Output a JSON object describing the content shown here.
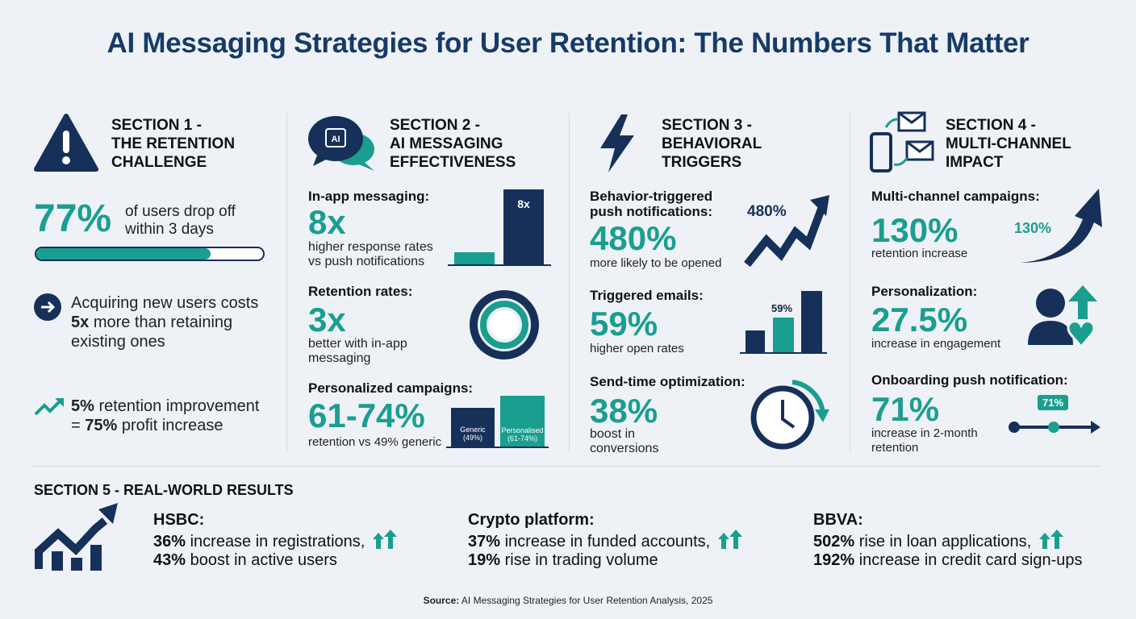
{
  "title": "AI Messaging Strategies for User Retention: The Numbers That Matter",
  "colors": {
    "navy": "#16305a",
    "teal": "#1a9e8f",
    "background": "#eef2f7"
  },
  "s1": {
    "icon": "warning-icon",
    "heading": [
      "SECTION 1 -",
      "THE RETENTION",
      "CHALLENGE"
    ],
    "stat": "77%",
    "stat_text": [
      "of users drop off",
      "within 3 days"
    ],
    "progress_percent": 77,
    "acq": [
      "Acquiring new users costs",
      "5x",
      "more than retaining",
      "existing ones"
    ],
    "profit": {
      "a": "5%",
      "b": "retention improvement",
      "c": "=",
      "d": "75%",
      "e": "profit increase"
    }
  },
  "s2": {
    "heading": [
      "SECTION 2 -",
      "AI MESSAGING",
      "EFFECTIVENESS"
    ],
    "icon_text": "AI",
    "b1": {
      "label": "In-app messaging:",
      "stat": "8x",
      "text": [
        "higher response rates",
        "vs push notifications"
      ],
      "bar_label": "8x"
    },
    "b2": {
      "label": "Retention rates:",
      "stat": "3x",
      "text": [
        "better with in-app",
        "messaging"
      ]
    },
    "b3": {
      "label": "Personalized campaigns:",
      "stat": "61-74%",
      "text": "retention vs 49% generic",
      "bars": [
        {
          "name": "Generic",
          "value": "(49%)"
        },
        {
          "name": "Personalised",
          "value": "(61-74%)"
        }
      ]
    }
  },
  "s3": {
    "heading": [
      "SECTION 3 -",
      "BEHAVIORAL",
      "TRIGGERS"
    ],
    "b1": {
      "label": [
        "Behavior-triggered",
        "push notifications:"
      ],
      "stat": "480%",
      "text": "more likely to be opened",
      "chart_label": "480%"
    },
    "b2": {
      "label": "Triggered emails:",
      "stat": "59%",
      "text": "higher open rates",
      "bar_label": "59%"
    },
    "b3": {
      "label": "Send-time optimization:",
      "stat": "38%",
      "text": [
        "boost in",
        "conversions"
      ]
    }
  },
  "s4": {
    "heading": [
      "SECTION 4 -",
      "MULTI-CHANNEL",
      "IMPACT"
    ],
    "b1": {
      "label": "Multi-channel campaigns:",
      "stat": "130%",
      "text": "retention increase",
      "arrow_label": "130%"
    },
    "b2": {
      "label": "Personalization:",
      "stat": "27.5%",
      "text": "increase in engagement"
    },
    "b3": {
      "label": "Onboarding push notification:",
      "stat": "71%",
      "text": [
        "increase in 2-month",
        "retention"
      ],
      "marker": "71%"
    }
  },
  "s5": {
    "heading": "SECTION 5 - REAL-WORLD RESULTS",
    "items": [
      {
        "name": "HSBC:",
        "l1b": "36%",
        "l1": " increase in registrations,",
        "l2b": "43%",
        "l2": " boost in active users"
      },
      {
        "name": "Crypto platform:",
        "l1b": "37%",
        "l1": " increase in funded accounts,",
        "l2b": "19%",
        "l2": " rise in trading volume"
      },
      {
        "name": "BBVA:",
        "l1b": "502%",
        "l1": " rise in loan applications,",
        "l2b": "192%",
        "l2": " increase in credit card sign-ups"
      }
    ]
  },
  "source": {
    "label": "Source:",
    "text": " AI Messaging Strategies for User Retention Analysis, 2025"
  }
}
